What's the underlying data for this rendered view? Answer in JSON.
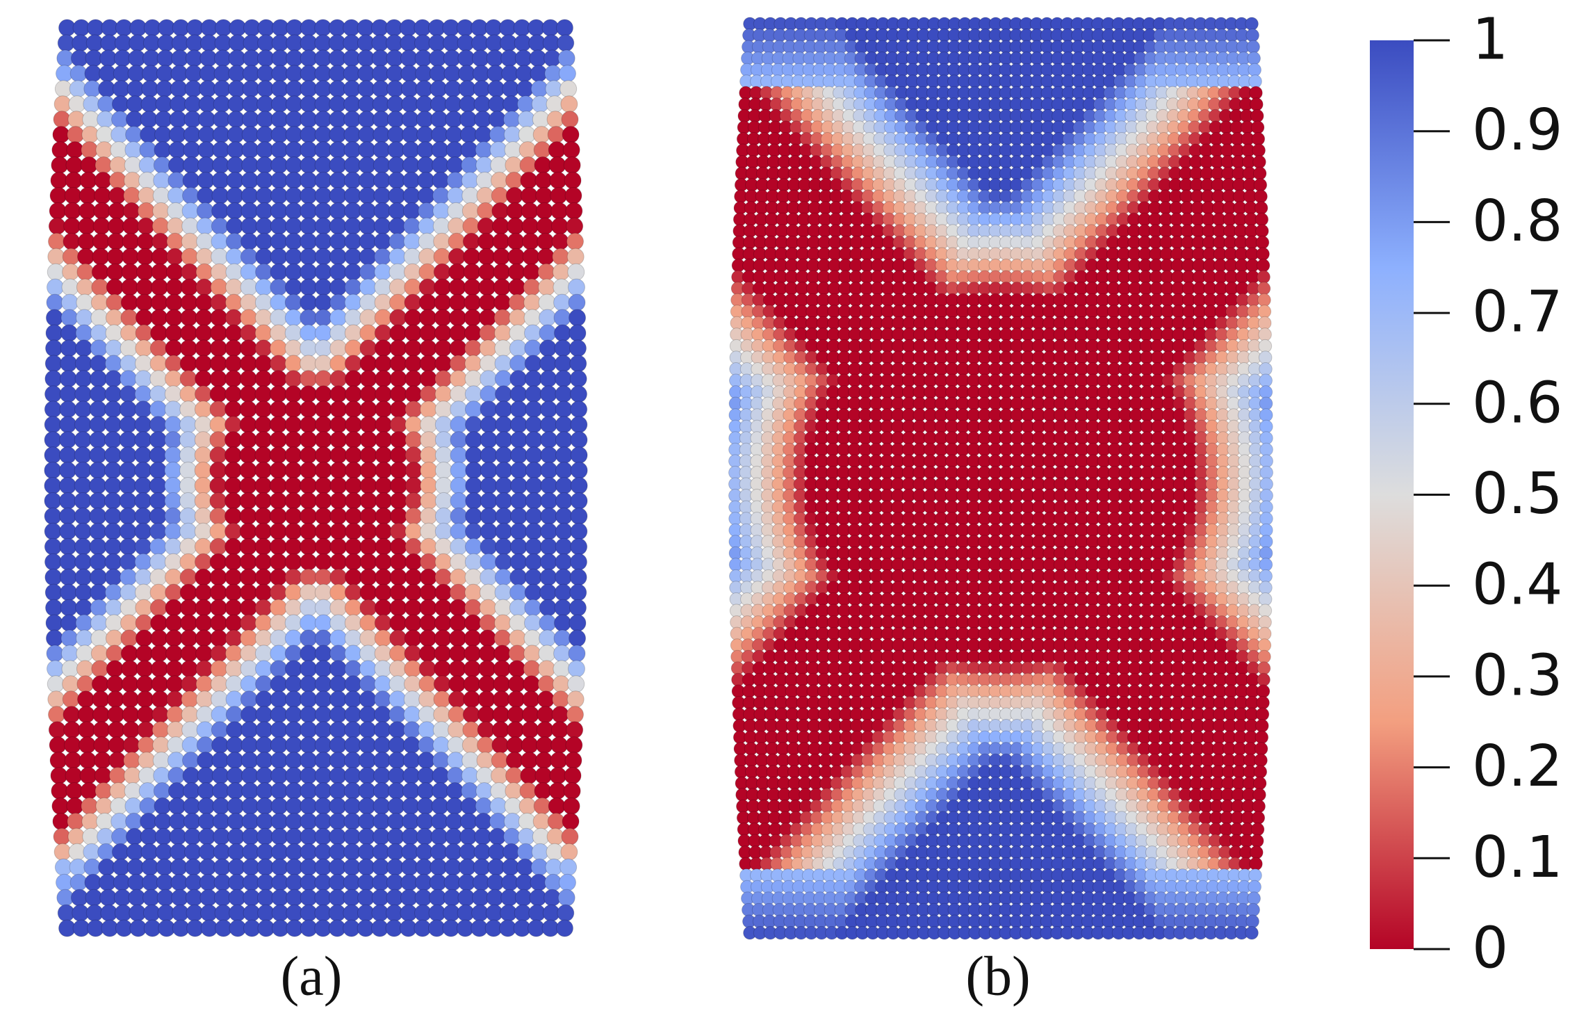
{
  "panels": [
    {
      "caption": "(a)"
    },
    {
      "caption": "(b)"
    }
  ],
  "colorbar": {
    "range": [
      0,
      1
    ],
    "ticks": [
      0,
      0.1,
      0.2,
      0.3,
      0.4,
      0.5,
      0.6,
      0.7,
      0.8,
      0.9,
      1
    ]
  }
}
